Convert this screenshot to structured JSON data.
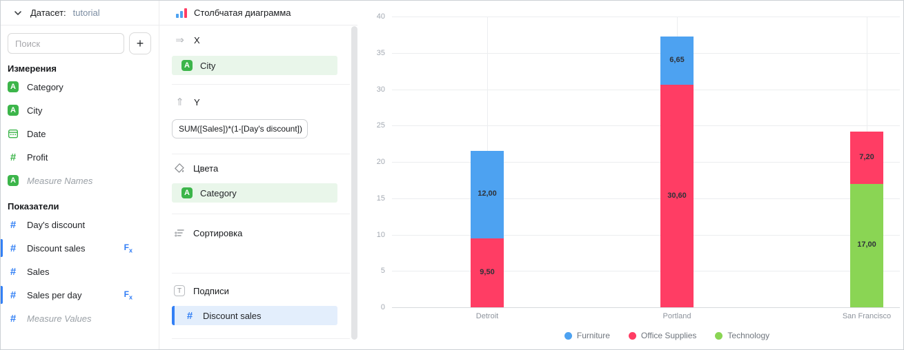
{
  "sidebar": {
    "header": {
      "label": "Датасет:",
      "dataset_name": "tutorial"
    },
    "search": {
      "placeholder": "Поиск",
      "add_button_glyph": "+"
    },
    "dimensions": {
      "title": "Измерения",
      "items": [
        {
          "label": "Category",
          "icon": "string-type-icon"
        },
        {
          "label": "City",
          "icon": "string-type-icon"
        },
        {
          "label": "Date",
          "icon": "date-type-icon"
        },
        {
          "label": "Profit",
          "icon": "number-type-icon"
        },
        {
          "label": "Measure Names",
          "icon": "string-type-icon",
          "system": true
        }
      ]
    },
    "measures": {
      "title": "Показатели",
      "items": [
        {
          "label": "Day's discount",
          "icon": "number-type-icon"
        },
        {
          "label": "Discount sales",
          "icon": "number-type-icon",
          "formula": true,
          "in_use": true
        },
        {
          "label": "Sales",
          "icon": "number-type-icon"
        },
        {
          "label": "Sales per day",
          "icon": "number-type-icon",
          "formula": true,
          "in_use": true
        },
        {
          "label": "Measure Values",
          "icon": "number-type-icon",
          "system": true
        }
      ]
    }
  },
  "panel": {
    "title": "Столбчатая диаграмма",
    "sections": {
      "x": {
        "label": "X",
        "field": "City"
      },
      "y": {
        "label": "Y",
        "formula": "SUM([Sales])*(1-[Day's discount])"
      },
      "colors": {
        "label": "Цвета",
        "field": "Category"
      },
      "sort": {
        "label": "Сортировка"
      },
      "labels": {
        "label": "Подписи",
        "field": "Discount sales"
      }
    }
  },
  "chart_data": {
    "type": "bar",
    "stacked": true,
    "title": "",
    "xlabel": "",
    "ylabel": "",
    "categories": [
      "Detroit",
      "Portland",
      "San Francisco"
    ],
    "series": [
      {
        "name": "Furniture",
        "color": "#4DA2F1",
        "values": [
          12.0,
          6.65,
          null
        ],
        "labels": [
          "12,00",
          "6,65",
          null
        ]
      },
      {
        "name": "Office Supplies",
        "color": "#FF3D64",
        "values": [
          9.5,
          30.6,
          7.2
        ],
        "labels": [
          "9,50",
          "30,60",
          "7,20"
        ]
      },
      {
        "name": "Technology",
        "color": "#8AD554",
        "values": [
          null,
          null,
          17.0
        ],
        "labels": [
          null,
          null,
          "17,00"
        ]
      }
    ],
    "ylim": [
      0,
      40
    ],
    "ytick_step": 5,
    "grid": true,
    "legend_position": "bottom"
  }
}
